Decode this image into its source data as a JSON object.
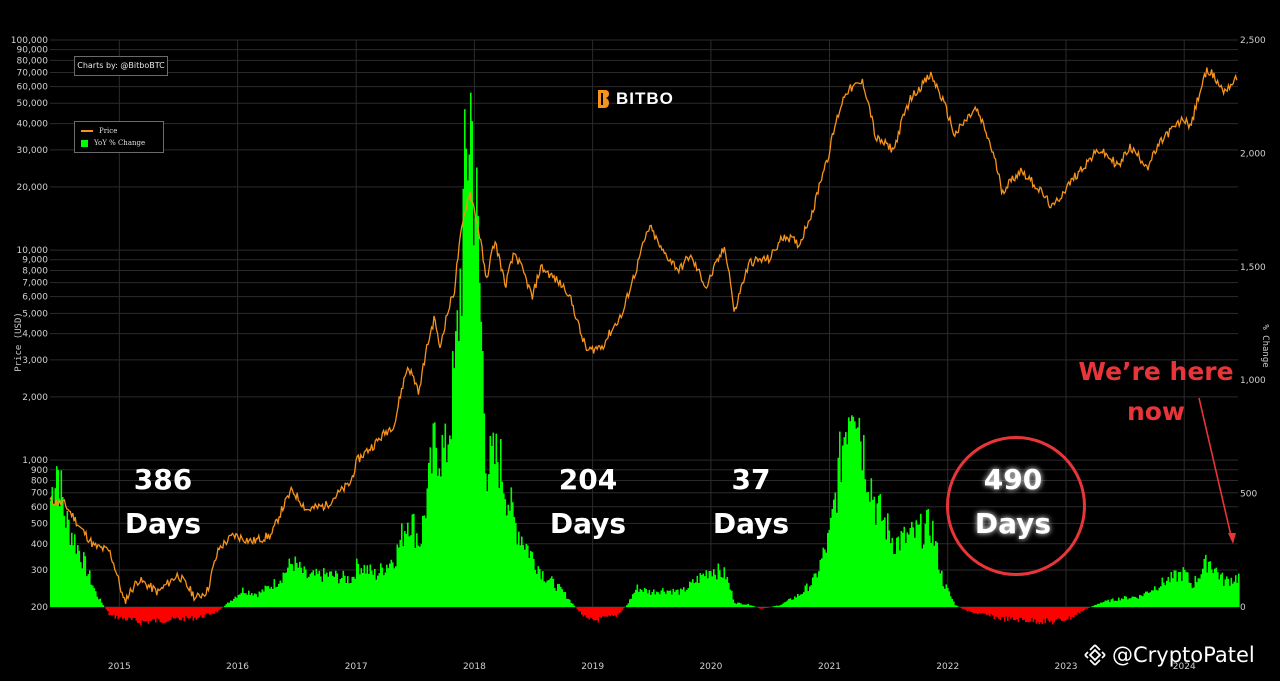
{
  "chart_data": {
    "type": "line",
    "credit": "Charts by: @BitboBTC",
    "brand": "BITBO",
    "legend": [
      {
        "name": "Price",
        "color": "#f7931a"
      },
      {
        "name": "YoY % Change",
        "color": "#00ff00"
      }
    ],
    "ylabel": "Price (USD)",
    "y2label": "% Change",
    "y_scale": "log",
    "ylim": [
      200,
      100000
    ],
    "y2lim": [
      0,
      2500
    ],
    "y_ticks": [
      "200",
      "300",
      "400",
      "500",
      "600",
      "700",
      "800",
      "900",
      "1,000",
      "2,000",
      "3,000",
      "4,000",
      "5,000",
      "6,000",
      "7,000",
      "8,000",
      "9,000",
      "10,000",
      "20,000",
      "30,000",
      "40,000",
      "50,000",
      "60,000",
      "70,000",
      "80,000",
      "90,000",
      "100,000"
    ],
    "y2_ticks": [
      "0",
      "500",
      "1,000",
      "1,500",
      "2,000",
      "2,500"
    ],
    "x_ticks": [
      "2015",
      "2016",
      "2017",
      "2018",
      "2019",
      "2020",
      "2021",
      "2022",
      "2023",
      "2024"
    ],
    "xlim": [
      "2014-06-01",
      "2024-06-15"
    ],
    "series": [
      {
        "name": "Price",
        "color": "#f7931a",
        "points": [
          [
            "2014-06-01",
            640
          ],
          [
            "2014-07-15",
            620
          ],
          [
            "2014-09-01",
            480
          ],
          [
            "2014-10-15",
            390
          ],
          [
            "2014-12-01",
            370
          ],
          [
            "2015-01-15",
            210
          ],
          [
            "2015-03-01",
            270
          ],
          [
            "2015-05-01",
            235
          ],
          [
            "2015-07-01",
            285
          ],
          [
            "2015-08-25",
            220
          ],
          [
            "2015-10-01",
            240
          ],
          [
            "2015-11-05",
            380
          ],
          [
            "2015-12-20",
            440
          ],
          [
            "2016-02-15",
            410
          ],
          [
            "2016-04-15",
            440
          ],
          [
            "2016-06-17",
            720
          ],
          [
            "2016-08-01",
            580
          ],
          [
            "2016-10-01",
            610
          ],
          [
            "2016-12-15",
            780
          ],
          [
            "2017-01-05",
            1000
          ],
          [
            "2017-03-01",
            1200
          ],
          [
            "2017-05-01",
            1500
          ],
          [
            "2017-06-10",
            2800
          ],
          [
            "2017-07-15",
            2100
          ],
          [
            "2017-09-01",
            4800
          ],
          [
            "2017-09-15",
            3300
          ],
          [
            "2017-11-01",
            6500
          ],
          [
            "2017-12-17",
            19000
          ],
          [
            "2018-02-06",
            7000
          ],
          [
            "2018-03-05",
            11000
          ],
          [
            "2018-04-06",
            6700
          ],
          [
            "2018-05-05",
            9700
          ],
          [
            "2018-06-29",
            5900
          ],
          [
            "2018-07-25",
            8300
          ],
          [
            "2018-10-15",
            6400
          ],
          [
            "2018-11-25",
            4000
          ],
          [
            "2018-12-15",
            3300
          ],
          [
            "2019-02-01",
            3500
          ],
          [
            "2019-04-05",
            5000
          ],
          [
            "2019-05-15",
            8000
          ],
          [
            "2019-06-26",
            12900
          ],
          [
            "2019-08-01",
            10000
          ],
          [
            "2019-09-25",
            8000
          ],
          [
            "2019-10-27",
            9400
          ],
          [
            "2019-12-18",
            6600
          ],
          [
            "2020-02-13",
            10300
          ],
          [
            "2020-03-13",
            4900
          ],
          [
            "2020-05-01",
            8800
          ],
          [
            "2020-07-01",
            9100
          ],
          [
            "2020-08-15",
            11800
          ],
          [
            "2020-10-01",
            10600
          ],
          [
            "2020-11-15",
            16000
          ],
          [
            "2020-12-31",
            29000
          ],
          [
            "2021-02-21",
            57000
          ],
          [
            "2021-04-14",
            63000
          ],
          [
            "2021-05-23",
            34000
          ],
          [
            "2021-07-20",
            30000
          ],
          [
            "2021-09-06",
            52000
          ],
          [
            "2021-11-10",
            68000
          ],
          [
            "2022-01-22",
            35000
          ],
          [
            "2022-03-29",
            47000
          ],
          [
            "2022-06-18",
            19000
          ],
          [
            "2022-08-15",
            24000
          ],
          [
            "2022-10-15",
            19000
          ],
          [
            "2022-11-21",
            15800
          ],
          [
            "2023-01-15",
            21000
          ],
          [
            "2023-04-14",
            30000
          ],
          [
            "2023-06-15",
            25000
          ],
          [
            "2023-07-15",
            31000
          ],
          [
            "2023-09-11",
            25000
          ],
          [
            "2023-10-31",
            34500
          ],
          [
            "2023-12-31",
            42000
          ],
          [
            "2024-01-23",
            39000
          ],
          [
            "2024-03-14",
            73000
          ],
          [
            "2024-05-01",
            57000
          ],
          [
            "2024-06-15",
            66000
          ]
        ]
      },
      {
        "name": "YoY % Change",
        "color": "#00ff00",
        "negative_color": "#ff0000",
        "points": [
          [
            "2014-06-01",
            500
          ],
          [
            "2014-06-20",
            680
          ],
          [
            "2014-07-15",
            420
          ],
          [
            "2014-09-01",
            250
          ],
          [
            "2014-10-20",
            60
          ],
          [
            "2014-12-01",
            -40
          ],
          [
            "2015-03-01",
            -70
          ],
          [
            "2015-06-01",
            -60
          ],
          [
            "2015-09-01",
            -50
          ],
          [
            "2015-11-01",
            -20
          ],
          [
            "2015-12-01",
            20
          ],
          [
            "2016-01-15",
            80
          ],
          [
            "2016-03-01",
            60
          ],
          [
            "2016-05-01",
            120
          ],
          [
            "2016-06-17",
            210
          ],
          [
            "2016-08-01",
            140
          ],
          [
            "2016-10-01",
            150
          ],
          [
            "2016-12-15",
            130
          ],
          [
            "2017-01-05",
            200
          ],
          [
            "2017-03-01",
            150
          ],
          [
            "2017-05-01",
            240
          ],
          [
            "2017-06-10",
            430
          ],
          [
            "2017-07-15",
            300
          ],
          [
            "2017-09-01",
            780
          ],
          [
            "2017-10-01",
            700
          ],
          [
            "2017-11-01",
            1100
          ],
          [
            "2017-12-17",
            2380
          ],
          [
            "2018-01-15",
            1500
          ],
          [
            "2018-02-06",
            650
          ],
          [
            "2018-03-15",
            700
          ],
          [
            "2018-05-01",
            400
          ],
          [
            "2018-06-29",
            230
          ],
          [
            "2018-08-01",
            150
          ],
          [
            "2018-09-30",
            70
          ],
          [
            "2018-11-01",
            10
          ],
          [
            "2018-12-15",
            -65
          ],
          [
            "2019-01-15",
            -60
          ],
          [
            "2019-03-15",
            -40
          ],
          [
            "2019-04-15",
            10
          ],
          [
            "2019-05-15",
            90
          ],
          [
            "2019-06-26",
            70
          ],
          [
            "2019-08-01",
            80
          ],
          [
            "2019-10-01",
            70
          ],
          [
            "2019-12-31",
            180
          ],
          [
            "2020-02-13",
            150
          ],
          [
            "2020-03-13",
            20
          ],
          [
            "2020-05-01",
            10
          ],
          [
            "2020-06-01",
            -10
          ],
          [
            "2020-08-01",
            10
          ],
          [
            "2020-10-01",
            60
          ],
          [
            "2020-11-15",
            130
          ],
          [
            "2020-12-31",
            330
          ],
          [
            "2021-02-21",
            900
          ],
          [
            "2021-03-15",
            1070
          ],
          [
            "2021-04-14",
            740
          ],
          [
            "2021-05-23",
            470
          ],
          [
            "2021-07-20",
            300
          ],
          [
            "2021-09-06",
            330
          ],
          [
            "2021-11-10",
            380
          ],
          [
            "2021-12-15",
            120
          ],
          [
            "2022-01-22",
            10
          ],
          [
            "2022-03-01",
            -20
          ],
          [
            "2022-06-18",
            -55
          ],
          [
            "2022-08-15",
            -60
          ],
          [
            "2022-11-21",
            -70
          ],
          [
            "2023-01-15",
            -50
          ],
          [
            "2023-03-01",
            -10
          ],
          [
            "2023-04-14",
            20
          ],
          [
            "2023-06-15",
            40
          ],
          [
            "2023-08-15",
            50
          ],
          [
            "2023-10-31",
            120
          ],
          [
            "2023-12-31",
            160
          ],
          [
            "2024-01-23",
            100
          ],
          [
            "2024-03-14",
            220
          ],
          [
            "2024-05-01",
            120
          ],
          [
            "2024-06-15",
            140
          ]
        ]
      }
    ],
    "annotations": [
      {
        "line1": "386",
        "line2": "Days",
        "period": "bear-2015"
      },
      {
        "line1": "204",
        "line2": "Days",
        "period": "bear-2019"
      },
      {
        "line1": "37",
        "line2": "Days",
        "period": "bear-2020"
      },
      {
        "line1": "490",
        "line2": "Days",
        "period": "bear-2022",
        "highlighted": true
      }
    ],
    "callout": {
      "line1": "We’re here",
      "line2": "now"
    }
  },
  "watermark": "@CryptoPatel",
  "colors": {
    "accent_red": "#e8353a",
    "price": "#f7931a",
    "positive": "#00ff00",
    "negative": "#ff0000"
  },
  "icons": {
    "brand": "bitbo-logo-icon",
    "watermark": "binance-diamond-icon"
  }
}
